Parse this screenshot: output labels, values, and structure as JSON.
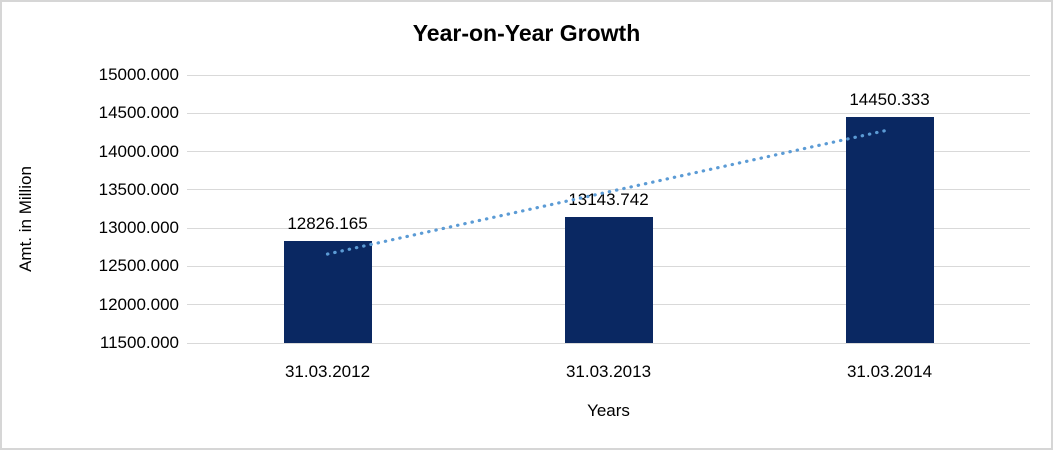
{
  "chart_data": {
    "type": "bar",
    "title": "Year-on-Year Growth",
    "categories": [
      "31.03.2012",
      "31.03.2013",
      "31.03.2014"
    ],
    "values": [
      12826.165,
      13143.742,
      14450.333
    ],
    "data_labels": [
      "12826.165",
      "13143.742",
      "14450.333"
    ],
    "xlabel": "Years",
    "ylabel": "Amt. in Million",
    "ylim": [
      11500,
      15000
    ],
    "ytick_step": 500,
    "ytick_labels": [
      "15000.000",
      "14500.000",
      "14000.000",
      "13500.000",
      "13000.000",
      "12500.000",
      "12000.000",
      "11500.000"
    ],
    "grid": true,
    "legend": "none",
    "trendline": "linear-dotted",
    "colors": {
      "bar": "#0a2862",
      "trendline": "#5b9bd5",
      "gridline": "#d9d9d9",
      "text": "#000000",
      "border": "#d6d6d6",
      "background": "#ffffff"
    }
  }
}
